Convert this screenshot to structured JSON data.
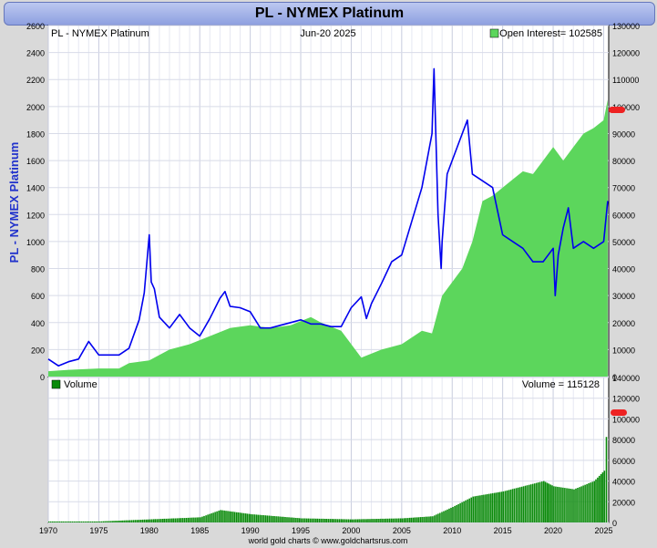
{
  "title": "PL  -  NYMEX Platinum",
  "footer": "world gold charts © www.goldchartsrus.com",
  "colors": {
    "price": "#0000ee",
    "open_interest": "#5cd65c",
    "volume": "#0a8a0a",
    "marker": "#ee2222"
  },
  "chart_data": [
    {
      "type": "line",
      "panel": "top",
      "label": "PL  -  NYMEX Platinum",
      "date": "Jun-20  2025",
      "ylabel": "PL  -  NYMEX Platinum",
      "xlim": [
        1970,
        2025.5
      ],
      "ylim_left": [
        0,
        2600
      ],
      "ylim_right": [
        0,
        130000
      ],
      "left_ticks": [
        0,
        200,
        400,
        600,
        800,
        1000,
        1200,
        1400,
        1600,
        1800,
        2000,
        2200,
        2400,
        2600
      ],
      "right_ticks": [
        0,
        10000,
        20000,
        30000,
        40000,
        50000,
        60000,
        70000,
        80000,
        90000,
        100000,
        110000,
        120000,
        130000
      ],
      "x_ticks": [
        1970,
        1975,
        1980,
        1985,
        1990,
        1995,
        2000,
        2005,
        2010,
        2015,
        2020,
        2025
      ],
      "grid": true,
      "legend": {
        "label": "Open Interest= 102585",
        "position": "top-right"
      },
      "series": [
        {
          "name": "PL  -  NYMEX Platinum",
          "kind": "line",
          "axis": "left",
          "x": [
            1970,
            1971,
            1972,
            1973,
            1974,
            1975,
            1976,
            1977,
            1978,
            1979,
            1979.5,
            1980,
            1980.2,
            1980.5,
            1981,
            1982,
            1983,
            1984,
            1985,
            1986,
            1987,
            1987.5,
            1988,
            1989,
            1990,
            1991,
            1992,
            1993,
            1994,
            1995,
            1996,
            1997,
            1998,
            1999,
            2000,
            2001,
            2001.5,
            2002,
            2003,
            2004,
            2005,
            2006,
            2007,
            2008,
            2008.2,
            2008.6,
            2008.9,
            2009,
            2009.5,
            2010,
            2011,
            2011.5,
            2012,
            2013,
            2014,
            2015,
            2016,
            2017,
            2018,
            2019,
            2020,
            2020.2,
            2020.5,
            2021,
            2021.5,
            2022,
            2023,
            2024,
            2025,
            2025.4
          ],
          "y": [
            130,
            80,
            110,
            130,
            260,
            160,
            160,
            160,
            210,
            420,
            620,
            1050,
            700,
            650,
            440,
            360,
            460,
            360,
            300,
            430,
            580,
            630,
            520,
            510,
            480,
            360,
            360,
            380,
            400,
            420,
            390,
            390,
            370,
            370,
            510,
            590,
            430,
            540,
            690,
            850,
            900,
            1150,
            1400,
            1800,
            2280,
            1200,
            800,
            1000,
            1500,
            1600,
            1800,
            1900,
            1500,
            1450,
            1400,
            1050,
            1000,
            950,
            850,
            850,
            950,
            600,
            900,
            1100,
            1250,
            950,
            1000,
            950,
            1000,
            1300
          ]
        },
        {
          "name": "Open Interest",
          "kind": "area",
          "axis": "right",
          "x": [
            1970,
            1972,
            1975,
            1977,
            1978,
            1980,
            1982,
            1984,
            1986,
            1988,
            1990,
            1992,
            1994,
            1996,
            1997,
            1999,
            2001,
            2003,
            2005,
            2007,
            2008,
            2009,
            2011,
            2012,
            2013,
            2014,
            2015,
            2016,
            2017,
            2018,
            2019,
            2020,
            2021,
            2022,
            2023,
            2024,
            2025,
            2025.4
          ],
          "y": [
            2000,
            2500,
            3000,
            3000,
            5000,
            6000,
            10000,
            12000,
            15000,
            18000,
            19000,
            18000,
            19000,
            22000,
            20000,
            17000,
            7000,
            10000,
            12000,
            17000,
            16000,
            30000,
            40000,
            50000,
            65000,
            67000,
            70000,
            73000,
            76000,
            75000,
            80000,
            85000,
            80000,
            85000,
            90000,
            92000,
            95000,
            102585
          ]
        }
      ]
    },
    {
      "type": "bar",
      "panel": "bottom",
      "legend": {
        "label": "Volume",
        "position": "top-left"
      },
      "value_label": "Volume = 115128",
      "xlim": [
        1970,
        2025.5
      ],
      "ylim_right": [
        0,
        140000
      ],
      "right_ticks": [
        0,
        20000,
        40000,
        60000,
        80000,
        100000,
        120000,
        140000
      ],
      "series": [
        {
          "name": "Volume",
          "x": [
            1970,
            1975,
            1980,
            1985,
            1987,
            1990,
            1995,
            2000,
            2005,
            2008,
            2010,
            2012,
            2015,
            2017,
            2019,
            2020,
            2022,
            2024,
            2025,
            2025.4
          ],
          "y": [
            1000,
            1000,
            3000,
            5000,
            12000,
            8000,
            4000,
            3000,
            4000,
            6000,
            15000,
            25000,
            30000,
            35000,
            40000,
            35000,
            32000,
            40000,
            50000,
            115128
          ]
        }
      ]
    }
  ]
}
